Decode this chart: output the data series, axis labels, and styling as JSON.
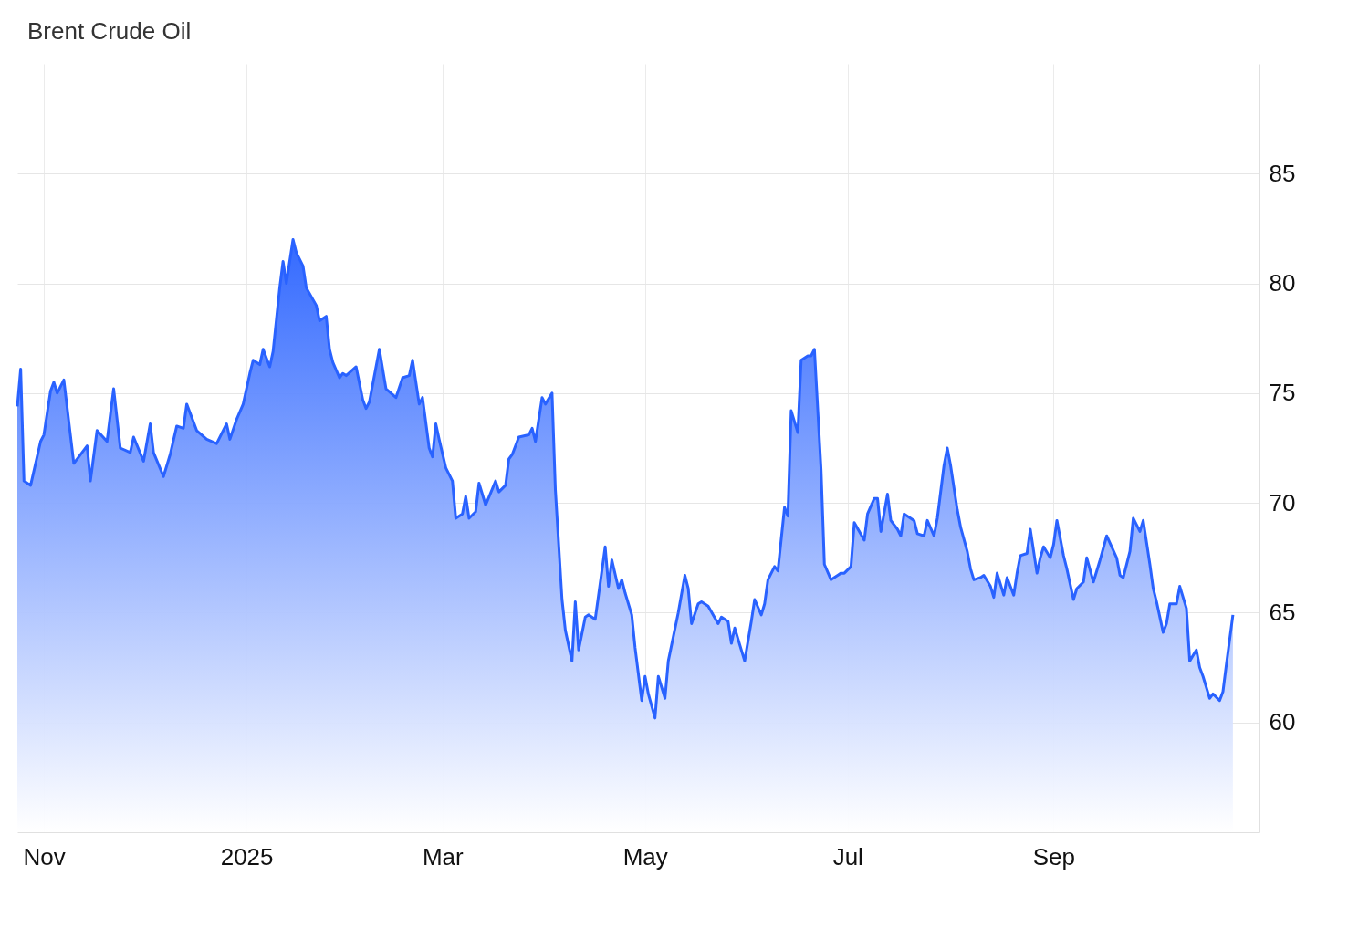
{
  "chart_data": {
    "type": "area",
    "title": "Brent Crude Oil",
    "x": [
      "2024-10-24",
      "2024-10-25",
      "2024-10-26",
      "2024-10-28",
      "2024-10-31",
      "2024-11-01",
      "2024-11-03",
      "2024-11-04",
      "2024-11-05",
      "2024-11-07",
      "2024-11-10",
      "2024-11-14",
      "2024-11-15",
      "2024-11-17",
      "2024-11-20",
      "2024-11-22",
      "2024-11-24",
      "2024-11-27",
      "2024-11-28",
      "2024-12-01",
      "2024-12-03",
      "2024-12-04",
      "2024-12-07",
      "2024-12-09",
      "2024-12-11",
      "2024-12-13",
      "2024-12-14",
      "2024-12-17",
      "2024-12-20",
      "2024-12-23",
      "2024-12-26",
      "2024-12-27",
      "2024-12-29",
      "2024-12-31",
      "2025-01-02",
      "2025-01-03",
      "2025-01-05",
      "2025-01-06",
      "2025-01-08",
      "2025-01-09",
      "2025-01-11",
      "2025-01-12",
      "2025-01-13",
      "2025-01-15",
      "2025-01-16",
      "2025-01-18",
      "2025-01-19",
      "2025-01-22",
      "2025-01-23",
      "2025-01-25",
      "2025-01-26",
      "2025-01-27",
      "2025-01-29",
      "2025-01-30",
      "2025-01-31",
      "2025-02-03",
      "2025-02-05",
      "2025-02-06",
      "2025-02-07",
      "2025-02-10",
      "2025-02-12",
      "2025-02-15",
      "2025-02-17",
      "2025-02-19",
      "2025-02-20",
      "2025-02-22",
      "2025-02-23",
      "2025-02-25",
      "2025-02-26",
      "2025-02-27",
      "2025-02-28",
      "2025-03-02",
      "2025-03-04",
      "2025-03-05",
      "2025-03-07",
      "2025-03-08",
      "2025-03-09",
      "2025-03-11",
      "2025-03-12",
      "2025-03-14",
      "2025-03-17",
      "2025-03-18",
      "2025-03-20",
      "2025-03-21",
      "2025-03-22",
      "2025-03-24",
      "2025-03-27",
      "2025-03-28",
      "2025-03-29",
      "2025-03-31",
      "2025-04-01",
      "2025-04-03",
      "2025-04-04",
      "2025-04-06",
      "2025-04-07",
      "2025-04-09",
      "2025-04-10",
      "2025-04-11",
      "2025-04-13",
      "2025-04-14",
      "2025-04-16",
      "2025-04-17",
      "2025-04-19",
      "2025-04-20",
      "2025-04-21",
      "2025-04-23",
      "2025-04-24",
      "2025-04-25",
      "2025-04-27",
      "2025-04-28",
      "2025-04-30",
      "2025-05-01",
      "2025-05-02",
      "2025-05-04",
      "2025-05-05",
      "2025-05-07",
      "2025-05-08",
      "2025-05-11",
      "2025-05-13",
      "2025-05-14",
      "2025-05-15",
      "2025-05-17",
      "2025-05-18",
      "2025-05-20",
      "2025-05-23",
      "2025-05-24",
      "2025-05-26",
      "2025-05-27",
      "2025-05-28",
      "2025-05-30",
      "2025-05-31",
      "2025-06-02",
      "2025-06-03",
      "2025-06-05",
      "2025-06-06",
      "2025-06-07",
      "2025-06-09",
      "2025-06-10",
      "2025-06-12",
      "2025-06-13",
      "2025-06-14",
      "2025-06-16",
      "2025-06-17",
      "2025-06-19",
      "2025-06-20",
      "2025-06-21",
      "2025-06-23",
      "2025-06-24",
      "2025-06-26",
      "2025-06-28",
      "2025-06-29",
      "2025-06-30",
      "2025-07-02",
      "2025-07-03",
      "2025-07-06",
      "2025-07-07",
      "2025-07-09",
      "2025-07-10",
      "2025-07-11",
      "2025-07-13",
      "2025-07-14",
      "2025-07-16",
      "2025-07-17",
      "2025-07-18",
      "2025-07-21",
      "2025-07-22",
      "2025-07-24",
      "2025-07-25",
      "2025-07-27",
      "2025-07-28",
      "2025-07-30",
      "2025-07-31",
      "2025-08-01",
      "2025-08-03",
      "2025-08-04",
      "2025-08-06",
      "2025-08-07",
      "2025-08-08",
      "2025-08-10",
      "2025-08-11",
      "2025-08-13",
      "2025-08-14",
      "2025-08-15",
      "2025-08-17",
      "2025-08-18",
      "2025-08-20",
      "2025-08-21",
      "2025-08-22",
      "2025-08-24",
      "2025-08-25",
      "2025-08-27",
      "2025-08-28",
      "2025-08-29",
      "2025-08-31",
      "2025-09-01",
      "2025-09-02",
      "2025-09-04",
      "2025-09-05",
      "2025-09-07",
      "2025-09-08",
      "2025-09-10",
      "2025-09-11",
      "2025-09-13",
      "2025-09-15",
      "2025-09-17",
      "2025-09-20",
      "2025-09-21",
      "2025-09-22",
      "2025-09-24",
      "2025-09-25",
      "2025-09-27",
      "2025-09-28",
      "2025-09-30",
      "2025-10-01",
      "2025-10-02",
      "2025-10-04",
      "2025-10-05",
      "2025-10-06",
      "2025-10-08",
      "2025-10-09",
      "2025-10-11",
      "2025-10-12",
      "2025-10-14",
      "2025-10-15",
      "2025-10-16",
      "2025-10-18",
      "2025-10-19",
      "2025-10-21",
      "2025-10-22",
      "2025-10-23",
      "2025-10-25"
    ],
    "series": [
      {
        "color": "#2962ff",
        "values": [
          74.4,
          76.1,
          71.0,
          70.8,
          72.8,
          73.1,
          75.1,
          75.5,
          75.0,
          75.6,
          71.8,
          72.6,
          71.0,
          73.3,
          72.8,
          75.2,
          72.5,
          72.3,
          73.0,
          71.9,
          73.6,
          72.3,
          71.2,
          72.2,
          73.5,
          73.4,
          74.5,
          73.3,
          72.9,
          72.7,
          73.6,
          72.9,
          73.8,
          74.5,
          75.9,
          76.5,
          76.3,
          77.0,
          76.2,
          76.9,
          79.8,
          81.0,
          80.0,
          82.0,
          81.4,
          80.8,
          79.8,
          79.0,
          78.3,
          78.5,
          77.0,
          76.4,
          75.7,
          75.9,
          75.8,
          76.2,
          74.7,
          74.3,
          74.6,
          77.0,
          75.2,
          74.8,
          75.7,
          75.8,
          76.5,
          74.5,
          74.8,
          72.5,
          72.1,
          73.6,
          72.9,
          71.6,
          71.0,
          69.3,
          69.5,
          70.3,
          69.3,
          69.6,
          70.9,
          69.9,
          71.0,
          70.5,
          70.8,
          72.0,
          72.2,
          73.0,
          73.1,
          73.4,
          72.8,
          74.8,
          74.5,
          75.0,
          70.6,
          65.6,
          64.2,
          62.8,
          65.5,
          63.3,
          64.8,
          64.9,
          64.7,
          65.8,
          68.0,
          66.2,
          67.4,
          66.1,
          66.5,
          65.9,
          64.9,
          63.4,
          61.0,
          62.1,
          61.3,
          60.2,
          62.1,
          61.1,
          62.8,
          65.0,
          66.7,
          66.1,
          64.5,
          65.4,
          65.5,
          65.3,
          64.5,
          64.8,
          64.6,
          63.6,
          64.3,
          63.3,
          62.8,
          64.6,
          65.6,
          64.9,
          65.4,
          66.5,
          67.1,
          66.9,
          69.8,
          69.4,
          74.2,
          73.2,
          76.5,
          76.7,
          76.7,
          77.0,
          71.5,
          67.2,
          66.5,
          66.7,
          66.8,
          66.8,
          67.1,
          69.1,
          68.3,
          69.5,
          70.2,
          70.2,
          68.7,
          70.4,
          69.2,
          68.8,
          68.5,
          69.5,
          69.2,
          68.6,
          68.5,
          69.2,
          68.5,
          69.3,
          71.7,
          72.5,
          71.7,
          69.7,
          68.9,
          67.8,
          67.0,
          66.5,
          66.6,
          66.7,
          66.2,
          65.7,
          66.8,
          65.8,
          66.6,
          65.8,
          66.8,
          67.6,
          67.7,
          68.8,
          66.8,
          67.5,
          68.0,
          67.5,
          68.1,
          69.2,
          67.6,
          67.0,
          65.6,
          66.1,
          66.4,
          67.5,
          66.4,
          67.4,
          68.5,
          67.5,
          66.7,
          66.6,
          67.8,
          69.3,
          68.7,
          69.2,
          67.2,
          66.1,
          65.5,
          64.1,
          64.5,
          65.4,
          65.4,
          66.2,
          65.2,
          62.8,
          63.3,
          62.5,
          62.1,
          61.1,
          61.3,
          61.0,
          61.4,
          62.6,
          64.9
        ]
      }
    ],
    "xlim": [
      "2024-10-24",
      "2025-11-02"
    ],
    "xticks": [
      {
        "value": "2024-11-01",
        "label": "Nov"
      },
      {
        "value": "2025-01-01",
        "label": "2025"
      },
      {
        "value": "2025-03-01",
        "label": "Mar"
      },
      {
        "value": "2025-05-01",
        "label": "May"
      },
      {
        "value": "2025-07-01",
        "label": "Jul"
      },
      {
        "value": "2025-09-01",
        "label": "Sep"
      }
    ],
    "ylim": [
      55,
      90
    ],
    "yticks": [
      60,
      65,
      70,
      75,
      80,
      85
    ],
    "grid": true
  }
}
